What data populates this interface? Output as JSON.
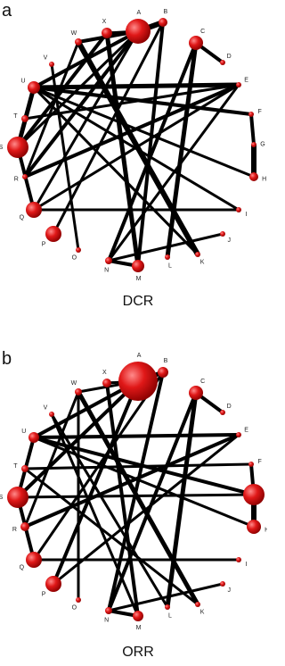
{
  "panels": [
    {
      "label": "a",
      "caption": "DCR",
      "nodes": [
        "A",
        "B",
        "C",
        "D",
        "E",
        "F",
        "G",
        "H",
        "I",
        "J",
        "K",
        "L",
        "M",
        "N",
        "O",
        "P",
        "Q",
        "R",
        "S",
        "T",
        "U",
        "V",
        "W",
        "X"
      ]
    },
    {
      "label": "b",
      "caption": "ORR",
      "nodes": [
        "A",
        "B",
        "C",
        "D",
        "E",
        "F",
        "G",
        "H",
        "I",
        "J",
        "K",
        "L",
        "M",
        "N",
        "O",
        "P",
        "Q",
        "R",
        "S",
        "T",
        "U",
        "V",
        "W",
        "X"
      ]
    }
  ]
}
